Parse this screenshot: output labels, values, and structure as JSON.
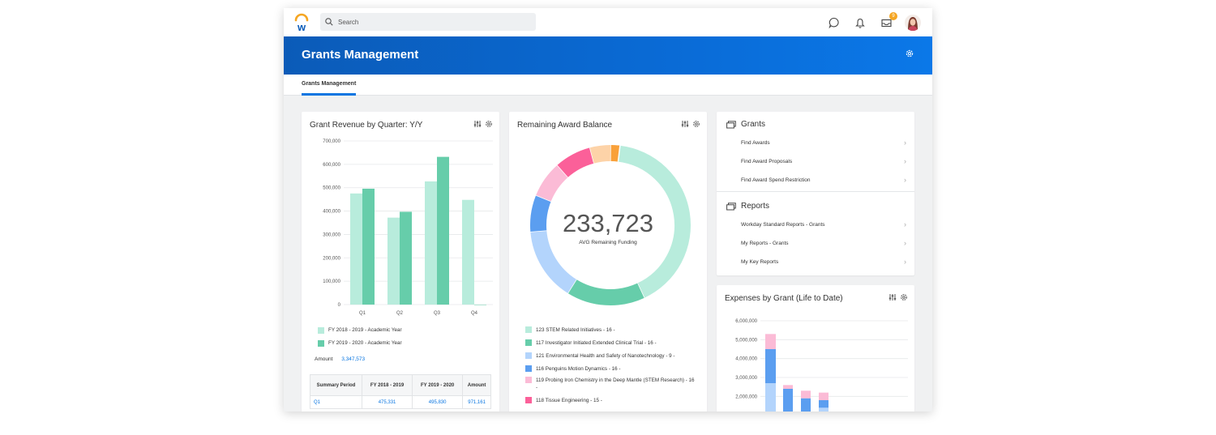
{
  "search": {
    "placeholder": "Search"
  },
  "notifications": {
    "inbox_count": "9"
  },
  "banner": {
    "title": "Grants Management"
  },
  "tabs": [
    {
      "label": "Grants Management"
    }
  ],
  "revenue_card": {
    "title": "Grant Revenue by Quarter: Y/Y",
    "amount_label": "Amount",
    "amount_value": "3,347,573",
    "table": {
      "headers": [
        "Summary Period",
        "FY 2018 - 2019",
        "FY 2019 - 2020",
        "Amount"
      ],
      "rows": [
        [
          "Q1",
          "475,331",
          "495,830",
          "971,161"
        ]
      ]
    }
  },
  "balance_card": {
    "title": "Remaining Award Balance",
    "center_value": "233,723",
    "center_label": "AVG Remaining Funding",
    "legend": [
      {
        "label": "123 STEM Related Initiatives - 16 -",
        "color": "#b8ecdc"
      },
      {
        "label": "117 Investigator Initiated Extended Clinical Trial - 16 -",
        "color": "#66cdaa"
      },
      {
        "label": "121 Environmental Health and Safety of Nanotechnology - 9 -",
        "color": "#b3d4fc"
      },
      {
        "label": "116 Penguins Motion Dynamics - 16 -",
        "color": "#5b9ef0"
      },
      {
        "label": "119 Probing Iron Chemistry in the Deep Mantle (STEM Research) - 16 -",
        "color": "#fbbbd6"
      },
      {
        "label": "118 Tissue Engineering - 15 -",
        "color": "#fb6099"
      }
    ]
  },
  "grants_panel": {
    "heading": "Grants",
    "links": [
      "Find Awards",
      "Find Award Proposals",
      "Find Award Spend Restriction"
    ]
  },
  "reports_panel": {
    "heading": "Reports",
    "links": [
      "Workday Standard Reports - Grants",
      "My Reports - Grants",
      "My Key Reports"
    ]
  },
  "expenses_card": {
    "title": "Expenses by Grant (Life to Date)"
  },
  "chart_data": [
    {
      "type": "bar",
      "title": "Grant Revenue by Quarter: Y/Y",
      "categories": [
        "Q1",
        "Q2",
        "Q3",
        "Q4"
      ],
      "series": [
        {
          "name": "FY 2018 - 2019 - Academic Year",
          "color": "#b8ecdc",
          "values": [
            475331,
            372000,
            527000,
            448000
          ]
        },
        {
          "name": "FY 2019 - 2020 - Academic Year",
          "color": "#66cdaa",
          "values": [
            495830,
            397000,
            632000,
            0
          ]
        }
      ],
      "ylim": [
        0,
        700000
      ],
      "yticks": [
        "0",
        "100,000",
        "200,000",
        "300,000",
        "400,000",
        "500,000",
        "600,000",
        "700,000"
      ],
      "legend_position": "bottom"
    },
    {
      "type": "pie",
      "title": "Remaining Award Balance",
      "slices": [
        {
          "value": 39,
          "color": "#b8ecdc"
        },
        {
          "value": 15,
          "color": "#66cdaa"
        },
        {
          "value": 14,
          "color": "#b3d4fc"
        },
        {
          "value": 7,
          "color": "#5b9ef0"
        },
        {
          "value": 7,
          "color": "#fbbbd6"
        },
        {
          "value": 7,
          "color": "#fb6099"
        },
        {
          "value": 4,
          "color": "#fdd3a8"
        },
        {
          "value": 1.7,
          "color": "#f9a13a"
        }
      ]
    },
    {
      "type": "bar",
      "title": "Expenses by Grant (Life to Date)",
      "stacked": true,
      "ylim": [
        0,
        6000000
      ],
      "yticks": [
        "1,000,000",
        "2,000,000",
        "3,000,000",
        "4,000,000",
        "5,000,000",
        "6,000,000"
      ],
      "stacks": [
        [
          {
            "value": 2700000,
            "color": "#b3d4fc"
          },
          {
            "value": 1800000,
            "color": "#5b9ef0"
          },
          {
            "value": 800000,
            "color": "#fbbbd6"
          }
        ],
        [
          {
            "value": 1100000,
            "color": "#b3d4fc"
          },
          {
            "value": 1300000,
            "color": "#5b9ef0"
          },
          {
            "value": 200000,
            "color": "#fbbbd6"
          }
        ],
        [
          {
            "value": 900000,
            "color": "#b3d4fc"
          },
          {
            "value": 1000000,
            "color": "#5b9ef0"
          },
          {
            "value": 400000,
            "color": "#fbbbd6"
          }
        ],
        [
          {
            "value": 1400000,
            "color": "#b3d4fc"
          },
          {
            "value": 400000,
            "color": "#5b9ef0"
          },
          {
            "value": 400000,
            "color": "#fbbbd6"
          }
        ]
      ]
    }
  ]
}
